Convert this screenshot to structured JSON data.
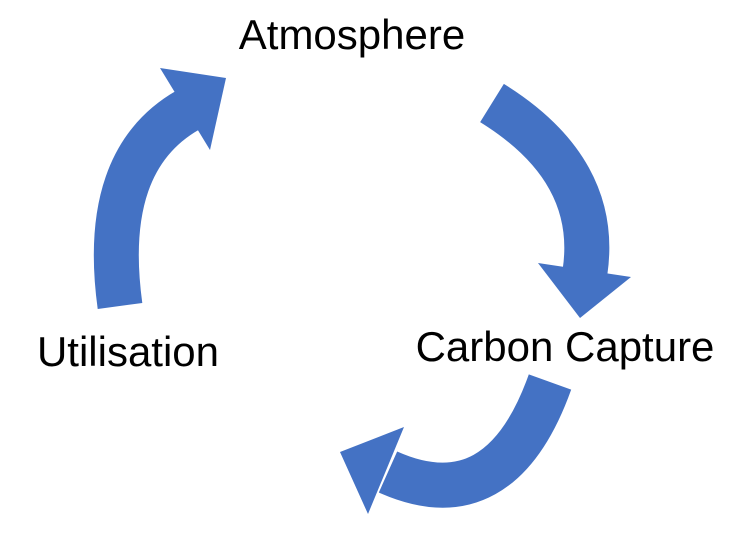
{
  "nodes": [
    {
      "label": "Atmosphere"
    },
    {
      "label": "Carbon Capture"
    },
    {
      "label": "Utilisation"
    }
  ]
}
